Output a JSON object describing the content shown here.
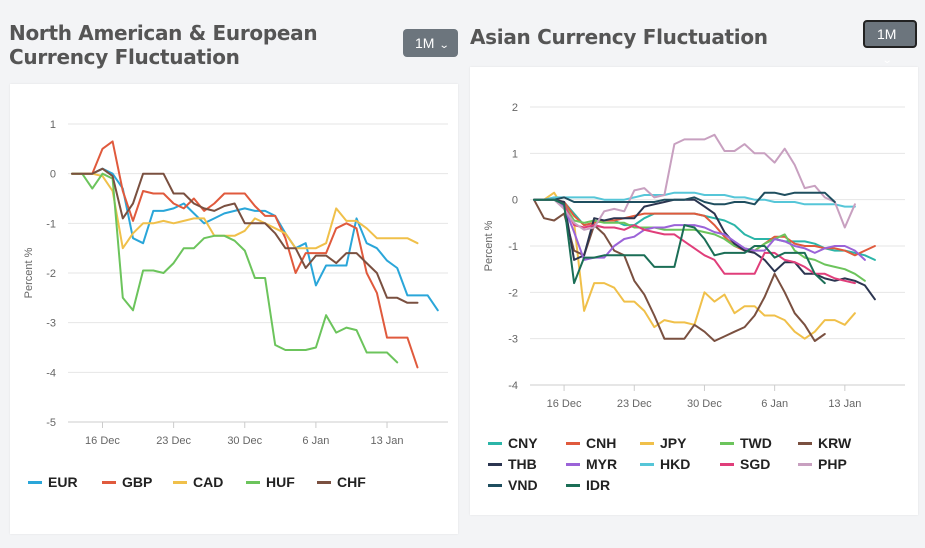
{
  "left": {
    "title": "North American & European Currency Fluctuation",
    "range": "1M"
  },
  "right": {
    "title": "Asian Currency Fluctuation",
    "range": "1M"
  },
  "chevron": "⌄",
  "chart_data": [
    {
      "type": "line",
      "title": "North American & European Currency Fluctuation",
      "ylabel": "Percent %",
      "ylim": [
        -5,
        1
      ],
      "yticks": [
        1,
        0,
        -1,
        -2,
        -3,
        -4,
        -5
      ],
      "xlim": [
        0,
        37
      ],
      "xticks": [
        {
          "x": 3,
          "label": "16 Dec"
        },
        {
          "x": 10,
          "label": "23 Dec"
        },
        {
          "x": 17,
          "label": "30 Dec"
        },
        {
          "x": 24,
          "label": "6 Jan"
        },
        {
          "x": 31,
          "label": "13 Jan"
        }
      ],
      "series": [
        {
          "name": "EUR",
          "color": "#2aa6d9",
          "values": [
            0,
            0,
            0,
            0.1,
            0,
            -0.3,
            -1.3,
            -1.4,
            -0.75,
            -0.75,
            -0.7,
            -0.6,
            -0.8,
            -1.0,
            -0.9,
            -0.8,
            -0.75,
            -0.7,
            -0.75,
            -0.75,
            -0.85,
            -1.2,
            -1.5,
            -1.4,
            -2.25,
            -1.85,
            -1.85,
            -1.85,
            -0.9,
            -1.4,
            -1.5,
            -1.75,
            -1.9,
            -2.45,
            -2.45,
            -2.45,
            -2.75
          ]
        },
        {
          "name": "GBP",
          "color": "#e05a3d",
          "values": [
            0,
            0,
            0,
            0.5,
            0.65,
            -0.35,
            -0.95,
            -0.35,
            -0.4,
            -0.4,
            -0.6,
            -0.7,
            -0.5,
            -0.75,
            -0.6,
            -0.4,
            -0.4,
            -0.4,
            -0.65,
            -0.85,
            -0.85,
            -1.3,
            -2.0,
            -1.6,
            -1.6,
            -1.6,
            -1.1,
            -1.0,
            -1.1,
            -2.0,
            -2.4,
            -3.3,
            -3.3,
            -3.3,
            -3.9
          ]
        },
        {
          "name": "CAD",
          "color": "#f0c04a",
          "values": [
            0,
            0,
            0,
            -0.05,
            -0.35,
            -1.5,
            -1.2,
            -1.0,
            -1.0,
            -0.95,
            -1.0,
            -0.95,
            -0.9,
            -0.9,
            -1.25,
            -1.25,
            -1.25,
            -1.15,
            -0.9,
            -1.0,
            -1.1,
            -1.2,
            -1.5,
            -1.5,
            -1.5,
            -1.4,
            -0.7,
            -0.95,
            -0.95,
            -1.1,
            -1.3,
            -1.3,
            -1.3,
            -1.3,
            -1.4
          ]
        },
        {
          "name": "HUF",
          "color": "#6cc45c",
          "values": [
            0,
            0,
            -0.3,
            0,
            -0.1,
            -2.5,
            -2.75,
            -1.95,
            -1.95,
            -2.0,
            -1.8,
            -1.5,
            -1.5,
            -1.3,
            -1.25,
            -1.25,
            -1.35,
            -1.55,
            -2.1,
            -2.1,
            -3.45,
            -3.55,
            -3.55,
            -3.55,
            -3.5,
            -2.85,
            -3.2,
            -3.1,
            -3.15,
            -3.6,
            -3.6,
            -3.6,
            -3.8
          ]
        },
        {
          "name": "CHF",
          "color": "#7a5040",
          "values": [
            0,
            0,
            0,
            0.1,
            -0.05,
            -0.9,
            -0.6,
            0,
            0,
            0,
            -0.4,
            -0.4,
            -0.6,
            -0.7,
            -0.75,
            -0.65,
            -0.6,
            -1.0,
            -1.0,
            -1.0,
            -1.2,
            -1.5,
            -1.5,
            -1.9,
            -1.65,
            -1.65,
            -1.8,
            -1.6,
            -1.6,
            -1.8,
            -2.0,
            -2.5,
            -2.5,
            -2.6,
            -2.6
          ]
        }
      ]
    },
    {
      "type": "line",
      "title": "Asian Currency Fluctuation",
      "ylabel": "Percent %",
      "ylim": [
        -4,
        2
      ],
      "yticks": [
        2,
        1,
        0,
        -1,
        -2,
        -3,
        -4
      ],
      "xlim": [
        0,
        37
      ],
      "xticks": [
        {
          "x": 3,
          "label": "16 Dec"
        },
        {
          "x": 10,
          "label": "23 Dec"
        },
        {
          "x": 17,
          "label": "30 Dec"
        },
        {
          "x": 24,
          "label": "6 Jan"
        },
        {
          "x": 31,
          "label": "13 Jan"
        }
      ],
      "series": [
        {
          "name": "CNY",
          "color": "#2bb5a8",
          "values": [
            0,
            0,
            0,
            -0.05,
            -0.3,
            -0.55,
            -0.5,
            -0.45,
            -0.45,
            -0.55,
            -0.55,
            -0.4,
            -0.3,
            -0.3,
            -0.3,
            -0.3,
            -0.3,
            -0.35,
            -0.4,
            -0.45,
            -0.55,
            -0.75,
            -0.85,
            -0.85,
            -0.85,
            -0.9,
            -0.9,
            -0.9,
            -0.95,
            -1.05,
            -1.1,
            -1.1,
            -1.15,
            -1.2,
            -1.3
          ]
        },
        {
          "name": "CNH",
          "color": "#e05a3d",
          "values": [
            0,
            0,
            0,
            -0.05,
            -0.35,
            -0.55,
            -0.5,
            -0.45,
            -0.45,
            -0.4,
            -0.35,
            -0.3,
            -0.3,
            -0.3,
            -0.3,
            -0.3,
            -0.3,
            -0.35,
            -0.55,
            -0.8,
            -1.0,
            -1.1,
            -1.1,
            -0.95,
            -0.8,
            -0.8,
            -0.95,
            -1.0,
            -1.0,
            -1.05,
            -1.05,
            -1.1,
            -1.2,
            -1.1,
            -1.0
          ]
        },
        {
          "name": "JPY",
          "color": "#f0c04a",
          "values": [
            0,
            0,
            0.15,
            -0.2,
            -0.5,
            -2.4,
            -1.8,
            -1.8,
            -1.9,
            -2.2,
            -2.2,
            -2.4,
            -2.75,
            -2.6,
            -2.65,
            -2.65,
            -2.7,
            -2.0,
            -2.2,
            -2.05,
            -2.45,
            -2.3,
            -2.3,
            -2.5,
            -2.5,
            -2.6,
            -2.85,
            -3.0,
            -2.85,
            -2.6,
            -2.6,
            -2.7,
            -2.45
          ]
        },
        {
          "name": "TWD",
          "color": "#6cc45c",
          "values": [
            0,
            0,
            0,
            -0.1,
            -0.45,
            -0.5,
            -0.45,
            -0.5,
            -0.5,
            -0.5,
            -0.6,
            -0.6,
            -0.6,
            -0.65,
            -0.65,
            -0.65,
            -0.65,
            -0.7,
            -0.75,
            -0.85,
            -1.0,
            -1.05,
            -1.1,
            -0.95,
            -0.85,
            -0.75,
            -1.1,
            -1.25,
            -1.3,
            -1.4,
            -1.45,
            -1.5,
            -1.6,
            -1.75
          ]
        },
        {
          "name": "KRW",
          "color": "#7a5040",
          "values": [
            0,
            -0.4,
            -0.45,
            -0.3,
            -1.1,
            -1.2,
            -0.55,
            -0.75,
            -1.1,
            -1.2,
            -1.75,
            -2.05,
            -2.5,
            -3.0,
            -3.0,
            -3.0,
            -2.7,
            -2.85,
            -3.05,
            -2.95,
            -2.85,
            -2.75,
            -2.5,
            -2.1,
            -1.6,
            -2.0,
            -2.45,
            -2.7,
            -3.05,
            -2.9
          ]
        },
        {
          "name": "THB",
          "color": "#2b3550",
          "values": [
            0,
            0,
            0,
            -0.05,
            -1.3,
            -1.2,
            -0.4,
            -0.45,
            -0.4,
            -0.4,
            -0.4,
            -0.15,
            -0.1,
            -0.05,
            0,
            0,
            0,
            -0.15,
            -0.3,
            -0.7,
            -0.95,
            -1.1,
            -1.15,
            -1.3,
            -1.55,
            -1.35,
            -1.35,
            -1.6,
            -1.6,
            -1.7,
            -1.75,
            -1.7,
            -1.75,
            -1.85,
            -2.15
          ]
        },
        {
          "name": "MYR",
          "color": "#9b63d8",
          "values": [
            0,
            0,
            0,
            -0.15,
            -0.7,
            -1.3,
            -1.25,
            -1.25,
            -1.0,
            -0.85,
            -0.8,
            -0.65,
            -0.6,
            -0.6,
            -0.55,
            -0.55,
            -0.55,
            -0.6,
            -0.7,
            -0.75,
            -0.9,
            -1.05,
            -1.1,
            -1.1,
            -0.85,
            -0.9,
            -1.0,
            -1.05,
            -1.15,
            -1.05,
            -1.0,
            -1.0,
            -1.1,
            -1.3
          ]
        },
        {
          "name": "HKD",
          "color": "#56c6d8",
          "values": [
            0,
            0,
            0.05,
            0.05,
            0.05,
            0.05,
            0.05,
            0,
            0,
            0,
            0.05,
            0.1,
            0.1,
            0.1,
            0.15,
            0.15,
            0.15,
            0.1,
            0.1,
            0.1,
            0.05,
            0.05,
            0,
            0,
            -0.05,
            -0.05,
            -0.05,
            -0.1,
            -0.1,
            -0.1,
            -0.1,
            -0.15,
            -0.15
          ]
        },
        {
          "name": "SGD",
          "color": "#e03e7a",
          "values": [
            0,
            0,
            0,
            -0.1,
            -0.55,
            -0.6,
            -0.55,
            -0.6,
            -0.6,
            -0.65,
            -0.55,
            -0.65,
            -0.7,
            -0.75,
            -0.75,
            -0.9,
            -1.05,
            -1.2,
            -1.3,
            -1.6,
            -1.6,
            -1.6,
            -1.6,
            -1.15,
            -1.15,
            -1.3,
            -1.35,
            -1.45,
            -1.6,
            -1.6,
            -1.7,
            -1.75,
            -1.8
          ]
        },
        {
          "name": "PHP",
          "color": "#c8a0c0",
          "values": [
            0,
            0,
            0,
            -0.2,
            -0.5,
            -0.65,
            -0.6,
            -0.25,
            -0.2,
            -0.25,
            0.2,
            0.25,
            0.05,
            0.1,
            1.2,
            1.3,
            1.3,
            1.3,
            1.4,
            1.05,
            1.05,
            1.2,
            1.0,
            1.0,
            0.8,
            1.1,
            0.75,
            0.25,
            0.3,
            0.05,
            -0.05,
            -0.6,
            -0.1
          ]
        },
        {
          "name": "VND",
          "color": "#1f4e5f",
          "values": [
            0,
            0,
            0,
            0.05,
            -0.05,
            -0.05,
            -0.05,
            -0.05,
            -0.05,
            -0.05,
            -0.05,
            -0.05,
            -0.05,
            0,
            0,
            0,
            0.05,
            -0.05,
            -0.1,
            -0.1,
            -0.05,
            -0.05,
            -0.1,
            0.15,
            0.15,
            0.1,
            0.15,
            0.15,
            0.15,
            0.15,
            -0.05
          ]
        },
        {
          "name": "IDR",
          "color": "#1b6e56",
          "values": [
            0,
            0,
            0,
            -0.1,
            -1.8,
            -1.25,
            -1.25,
            -1.2,
            -1.2,
            -1.2,
            -1.2,
            -1.2,
            -1.45,
            -1.45,
            -1.45,
            -0.55,
            -0.6,
            -0.85,
            -1.2,
            -1.15,
            -1.15,
            -1.15,
            -1.0,
            -1.0,
            -1.25,
            -1.15,
            -1.15,
            -1.15,
            -1.6,
            -1.8
          ]
        }
      ]
    }
  ]
}
